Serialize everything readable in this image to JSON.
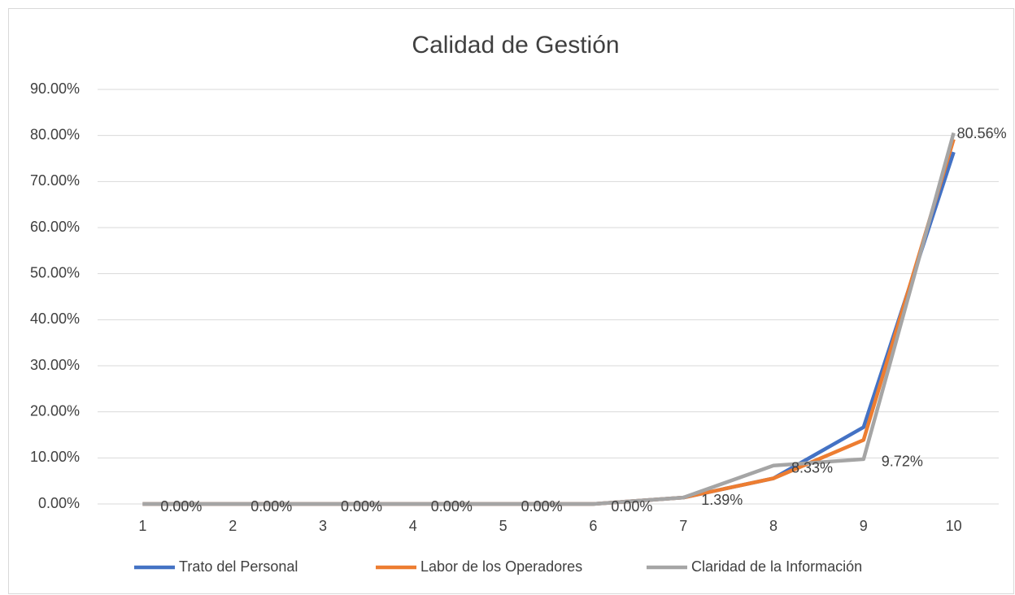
{
  "chart_data": {
    "type": "line",
    "title": "Calidad de Gestión",
    "categories": [
      "1",
      "2",
      "3",
      "4",
      "5",
      "6",
      "7",
      "8",
      "9",
      "10"
    ],
    "series": [
      {
        "name": "Trato del Personal",
        "color": "#4472c4",
        "values": [
          0,
          0,
          0,
          0,
          0,
          0,
          1.39,
          5.56,
          16.67,
          76.39
        ]
      },
      {
        "name": "Labor de los Operadores",
        "color": "#ed7d31",
        "values": [
          0,
          0,
          0,
          0,
          0,
          0,
          1.39,
          5.56,
          13.89,
          79.17
        ]
      },
      {
        "name": "Claridad de la Información",
        "color": "#a5a5a5",
        "values": [
          0,
          0,
          0,
          0,
          0,
          0,
          1.39,
          8.33,
          9.72,
          80.56
        ],
        "value_labels": [
          "0.00%",
          "0.00%",
          "0.00%",
          "0.00%",
          "0.00%",
          "0.00%",
          "1.39%",
          "8.33%",
          "9.72%",
          "80.56%"
        ]
      }
    ],
    "ylim": [
      0,
      90
    ],
    "yticks": [
      {
        "value": 0,
        "label": "0.00%"
      },
      {
        "value": 10,
        "label": "10.00%"
      },
      {
        "value": 20,
        "label": "20.00%"
      },
      {
        "value": 30,
        "label": "30.00%"
      },
      {
        "value": 40,
        "label": "40.00%"
      },
      {
        "value": 50,
        "label": "50.00%"
      },
      {
        "value": 60,
        "label": "60.00%"
      },
      {
        "value": 70,
        "label": "70.00%"
      },
      {
        "value": 80,
        "label": "80.00%"
      },
      {
        "value": 90,
        "label": "90.00%"
      }
    ],
    "grid": true,
    "legend": "bottom"
  }
}
